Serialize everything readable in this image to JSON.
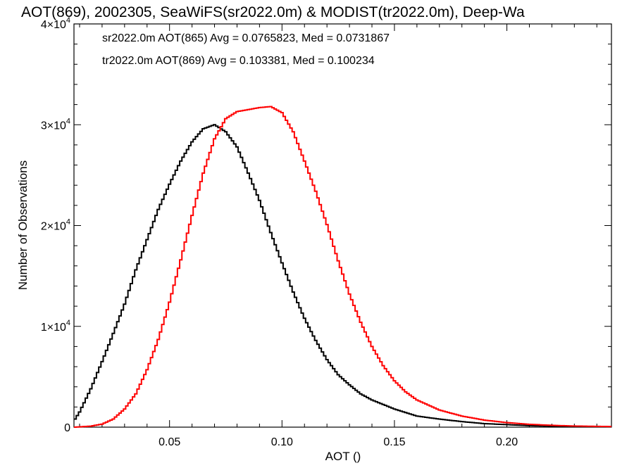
{
  "chart_data": {
    "type": "line",
    "title": "AOT(869), 2002305, SeaWiFS(sr2022.0m) & MODIST(tr2022.0m), Deep-Wa",
    "xlabel": "AOT ()",
    "ylabel": "Number of Observations",
    "xlim": [
      0.0075,
      0.2465
    ],
    "ylim": [
      0,
      40000
    ],
    "x_ticks": [
      0.05,
      0.1,
      0.15,
      0.2
    ],
    "x_tick_labels": [
      "0.05",
      "0.10",
      "0.15",
      "0.20"
    ],
    "y_ticks": [
      0,
      10000,
      20000,
      30000,
      40000
    ],
    "y_tick_labels": [
      {
        "base": "0",
        "exp": ""
      },
      {
        "base": "1×10",
        "exp": "4"
      },
      {
        "base": "2×10",
        "exp": "4"
      },
      {
        "base": "3×10",
        "exp": "4"
      },
      {
        "base": "4×10",
        "exp": "4"
      }
    ],
    "annotations": [
      "sr2022.0m AOT(865) Avg = 0.0765823, Med = 0.0731867",
      "tr2022.0m AOT(869) Avg = 0.103381, Med = 0.100234"
    ],
    "series": [
      {
        "color": "#000000",
        "x": [
          0.008,
          0.01,
          0.015,
          0.02,
          0.025,
          0.03,
          0.035,
          0.04,
          0.045,
          0.05,
          0.055,
          0.06,
          0.065,
          0.07,
          0.075,
          0.08,
          0.085,
          0.09,
          0.095,
          0.1,
          0.105,
          0.11,
          0.115,
          0.12,
          0.125,
          0.13,
          0.135,
          0.14,
          0.15,
          0.16,
          0.17,
          0.18,
          0.19,
          0.2,
          0.21,
          0.22,
          0.23,
          0.246
        ],
        "y": [
          800,
          1500,
          3800,
          6500,
          9300,
          12200,
          15600,
          18600,
          21600,
          24100,
          26400,
          28300,
          29600,
          30000,
          29300,
          27800,
          25200,
          22500,
          19300,
          16300,
          13400,
          10800,
          8600,
          6700,
          5200,
          4200,
          3300,
          2700,
          1800,
          1100,
          800,
          550,
          350,
          250,
          150,
          100,
          60,
          40
        ]
      },
      {
        "color": "#ff0000",
        "x": [
          0.008,
          0.015,
          0.02,
          0.025,
          0.03,
          0.035,
          0.04,
          0.045,
          0.05,
          0.055,
          0.06,
          0.065,
          0.07,
          0.075,
          0.08,
          0.085,
          0.09,
          0.095,
          0.1,
          0.105,
          0.11,
          0.115,
          0.12,
          0.125,
          0.13,
          0.135,
          0.14,
          0.145,
          0.15,
          0.155,
          0.16,
          0.17,
          0.18,
          0.19,
          0.2,
          0.21,
          0.22,
          0.23,
          0.246
        ],
        "y": [
          0,
          100,
          300,
          800,
          1800,
          3300,
          5700,
          8700,
          12400,
          16600,
          21000,
          25200,
          28600,
          30600,
          31300,
          31500,
          31700,
          31800,
          31200,
          29300,
          26400,
          23400,
          20100,
          16500,
          13200,
          10400,
          8000,
          6100,
          4600,
          3500,
          2700,
          1700,
          1100,
          700,
          450,
          280,
          180,
          110,
          60
        ]
      }
    ]
  }
}
